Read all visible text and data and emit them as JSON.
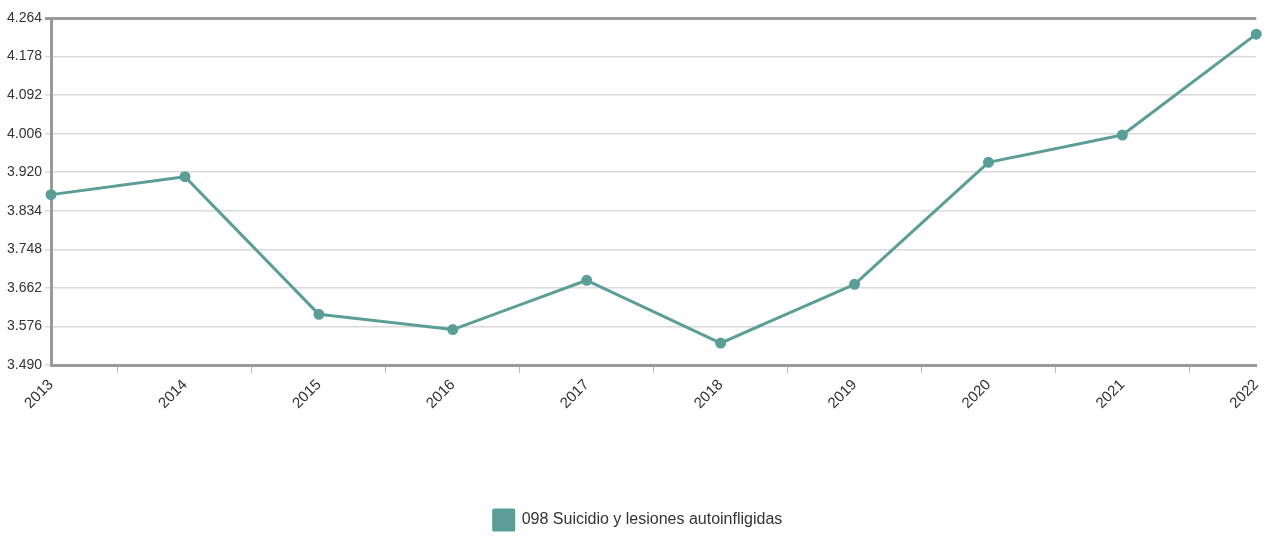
{
  "chart_data": {
    "type": "line",
    "categories": [
      "2013",
      "2014",
      "2015",
      "2016",
      "2017",
      "2018",
      "2019",
      "2020",
      "2021",
      "2022"
    ],
    "series": [
      {
        "name": "098 Suicidio y lesiones autoinfligidas",
        "color": "#5a9e97",
        "values": [
          3.87,
          3.91,
          3.603,
          3.569,
          3.679,
          3.539,
          3.67,
          3.942,
          4.003,
          4.228
        ]
      }
    ],
    "ylim": [
      3.49,
      4.264
    ],
    "yticks": [
      {
        "value": 3.49,
        "label": "3.490"
      },
      3.576,
      3.662,
      3.748,
      3.834,
      {
        "value": 3.92,
        "label": "3.920"
      },
      4.006,
      4.092,
      4.178,
      4.264
    ],
    "grid": "y",
    "legend": "bottom",
    "marker": "circle",
    "line_style": "solid"
  }
}
